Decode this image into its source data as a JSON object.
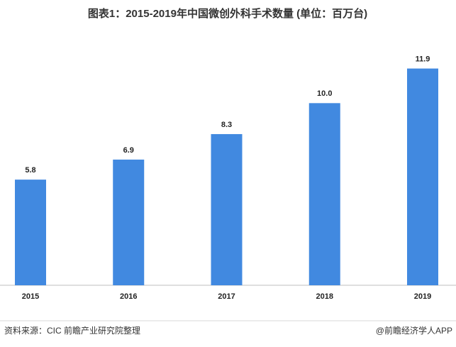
{
  "chart_data": {
    "type": "bar",
    "title": "图表1：2015-2019年中国微创外科手术数量 (单位：百万台)",
    "categories": [
      "2015",
      "2016",
      "2017",
      "2018",
      "2019"
    ],
    "values": [
      5.8,
      6.9,
      8.3,
      10.0,
      11.9
    ],
    "value_labels": [
      "5.8",
      "6.9",
      "8.3",
      "10.0",
      "11.9"
    ],
    "color": "#4189e0",
    "ylim": [
      0,
      12
    ],
    "source": "资料来源：CIC  前瞻产业研究院整理",
    "credit": "@前瞻经济学人APP"
  }
}
